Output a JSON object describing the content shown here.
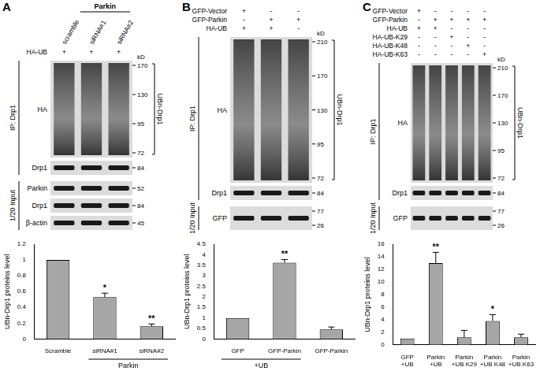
{
  "chart_data": [
    {
      "type": "bar",
      "y_label": "UBn-Drp1 proteins level",
      "categories": [
        "Scramble",
        "siRNA#1",
        "siRNA#2"
      ],
      "values": [
        1,
        0.53,
        0.16
      ],
      "errors": [
        0,
        0.05,
        0.03
      ],
      "color": "#a6a6a6",
      "ylim": [
        0,
        1.2
      ],
      "yticks": [
        0,
        0.2,
        0.4,
        0.6,
        0.8,
        1,
        1.2
      ],
      "grid": false,
      "annotations": [
        {
          "text": "*",
          "index": 1
        },
        {
          "text": "**",
          "index": 2
        },
        {
          "text": "Parkin",
          "indices": [
            1,
            2
          ]
        }
      ]
    },
    {
      "type": "bar",
      "y_label": "UBn-Drp1 proteins level",
      "categories": [
        "GFP",
        "GFP-Parkin",
        "GFP-Parkin"
      ],
      "values": [
        1,
        3.62,
        0.45
      ],
      "errors": [
        0,
        0.15,
        0.12
      ],
      "color": "#a6a6a6",
      "ylim": [
        0,
        4.5
      ],
      "yticks": [
        0,
        0.5,
        1,
        1.5,
        2,
        2.5,
        3,
        3.5,
        4,
        4.5
      ],
      "grid": false,
      "annotations": [
        {
          "text": "**",
          "index": 1
        },
        {
          "text": "+UB",
          "indices": [
            0,
            1
          ]
        }
      ]
    },
    {
      "type": "bar",
      "y_label": "UBn-Drp1 proteins level",
      "categories": [
        [
          "GFP",
          "+UB"
        ],
        [
          "Parkin",
          "+UB"
        ],
        [
          "Parkin",
          "+UB K29"
        ],
        [
          "Parkin",
          "+UB K48"
        ],
        [
          "Parkin",
          "+UB K63"
        ]
      ],
      "values": [
        1,
        13,
        1.2,
        3.8,
        1.2
      ],
      "errors": [
        0,
        1.7,
        1.1,
        1.0,
        0.5
      ],
      "color": "#a6a6a6",
      "ylim": [
        0,
        16
      ],
      "yticks": [
        0,
        2,
        4,
        6,
        8,
        10,
        12,
        14,
        16
      ],
      "grid": false,
      "annotations": [
        {
          "text": "**",
          "index": 1
        },
        {
          "text": "*",
          "index": 3
        }
      ]
    }
  ],
  "blots": [
    {
      "panel": "A",
      "marker_unit": "kD",
      "lane_names": [
        "scramble",
        "siRNA#1",
        "siRNA#2"
      ],
      "lane_group": {
        "text": "Parkin",
        "lanes": [
          1,
          2
        ]
      },
      "header": [
        {
          "label": "HA-UB",
          "marks": [
            "+",
            "+",
            "+"
          ]
        }
      ],
      "sections": [
        {
          "label": "IP: Drp1",
          "rows": [
            {
              "name": "HA",
              "markers": [
                170,
                130,
                95,
                72
              ],
              "smear": true,
              "bracket": "UBn-Drp1"
            },
            {
              "name": "Drp1",
              "markers": [
                84
              ]
            }
          ]
        },
        {
          "label": "1/20 Input",
          "rows": [
            {
              "name": "Parkin",
              "markers": [
                52
              ]
            },
            {
              "name": "Drp1",
              "markers": [
                84
              ]
            },
            {
              "name": "β-actin",
              "markers": [
                45
              ]
            }
          ]
        }
      ]
    },
    {
      "panel": "B",
      "marker_unit": "kD",
      "header": [
        {
          "label": "GFP-Vector",
          "marks": [
            "+",
            "-",
            "-"
          ]
        },
        {
          "label": "GFP-Parkin",
          "marks": [
            "-",
            "+",
            "+"
          ]
        },
        {
          "label": "HA-UB",
          "marks": [
            "+",
            "+",
            "-"
          ]
        }
      ],
      "sections": [
        {
          "label": "IP: Drp1",
          "rows": [
            {
              "name": "HA",
              "markers": [
                210,
                170,
                130,
                95,
                72
              ],
              "smear": true,
              "bracket": "UBn-Drp1"
            },
            {
              "name": "Drp1",
              "markers": [
                84
              ]
            }
          ]
        },
        {
          "label": "1/20 Input",
          "rows": [
            {
              "name": "GFP",
              "markers": [
                77,
                26
              ]
            }
          ]
        }
      ]
    },
    {
      "panel": "C",
      "marker_unit": "kD",
      "header": [
        {
          "label": "GFP-Vector",
          "marks": [
            "+",
            "-",
            "-",
            "-",
            "-"
          ]
        },
        {
          "label": "GFP-Parkin",
          "marks": [
            "-",
            "+",
            "+",
            "+",
            "+"
          ]
        },
        {
          "label": "HA-UB",
          "marks": [
            "+",
            "+",
            "-",
            "-",
            "-"
          ]
        },
        {
          "label": "HA-UB-K29",
          "marks": [
            "-",
            "-",
            "+",
            "-",
            "-"
          ]
        },
        {
          "label": "HA-UB-K48",
          "marks": [
            "-",
            "-",
            "-",
            "+",
            "-"
          ]
        },
        {
          "label": "HA-UB-K63",
          "marks": [
            "-",
            "-",
            "-",
            "-",
            "+"
          ]
        }
      ],
      "sections": [
        {
          "label": "IP: Drp1",
          "rows": [
            {
              "name": "HA",
              "markers": [
                210,
                170,
                130,
                95,
                72
              ],
              "smear": true,
              "bracket": "UBn-Drp1"
            },
            {
              "name": "Drp1",
              "markers": [
                84
              ]
            }
          ]
        },
        {
          "label": "1/20 Input",
          "rows": [
            {
              "name": "GFP",
              "markers": [
                77,
                26
              ]
            }
          ]
        }
      ]
    }
  ]
}
